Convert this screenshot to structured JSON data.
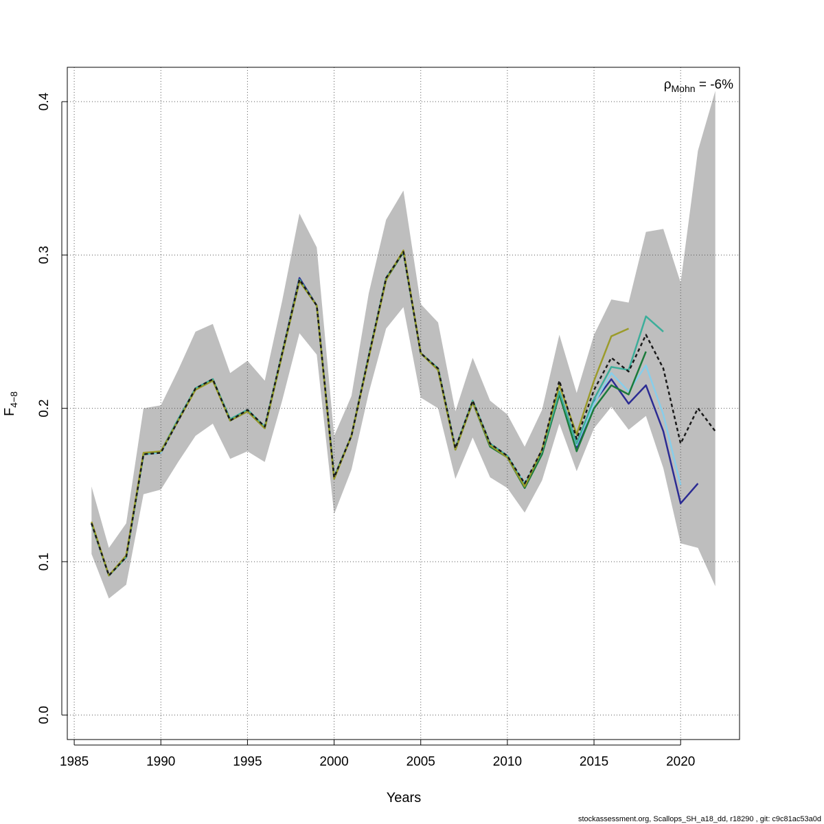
{
  "chart_data": {
    "type": "line",
    "xlabel": "Years",
    "ylabel_main": "F",
    "ylabel_sub": "4−8",
    "xlim": [
      1984.6,
      2023.4
    ],
    "ylim": [
      -0.016,
      0.4224
    ],
    "xticks": [
      "1985",
      "1990",
      "1995",
      "2000",
      "2005",
      "2010",
      "2015",
      "2020"
    ],
    "yticks": [
      "0.0",
      "0.1",
      "0.2",
      "0.3",
      "0.4"
    ],
    "grid": true,
    "annotation": {
      "symbol": "ρ",
      "sub": "Mohn",
      "text": " = -6%"
    },
    "footer": "stockassessment.org, Scallops_SH_a18_dd, r18290 , git: c9c81ac53a0d",
    "band": {
      "color": "#bebebe",
      "x": [
        1986,
        1987,
        1988,
        1989,
        1990,
        1991,
        1992,
        1993,
        1994,
        1995,
        1996,
        1997,
        1998,
        1999,
        2000,
        2001,
        2002,
        2003,
        2004,
        2005,
        2006,
        2007,
        2008,
        2009,
        2010,
        2011,
        2012,
        2013,
        2014,
        2015,
        2016,
        2017,
        2018,
        2019,
        2020,
        2021,
        2022
      ],
      "upper": [
        0.149,
        0.109,
        0.125,
        0.2,
        0.202,
        0.225,
        0.25,
        0.255,
        0.223,
        0.231,
        0.218,
        0.27,
        0.327,
        0.305,
        0.182,
        0.208,
        0.275,
        0.323,
        0.342,
        0.268,
        0.256,
        0.198,
        0.233,
        0.205,
        0.196,
        0.175,
        0.199,
        0.248,
        0.21,
        0.248,
        0.271,
        0.269,
        0.315,
        0.317,
        0.282,
        0.368,
        0.407
      ],
      "lower": [
        0.105,
        0.076,
        0.085,
        0.144,
        0.147,
        0.165,
        0.182,
        0.19,
        0.167,
        0.172,
        0.165,
        0.205,
        0.249,
        0.235,
        0.131,
        0.16,
        0.21,
        0.252,
        0.266,
        0.207,
        0.2,
        0.154,
        0.181,
        0.155,
        0.148,
        0.132,
        0.153,
        0.19,
        0.159,
        0.187,
        0.201,
        0.186,
        0.195,
        0.161,
        0.112,
        0.109,
        0.084
      ]
    },
    "series": [
      {
        "color": "#2b2b93",
        "dashed": false,
        "x": [
          1986,
          1987,
          1988,
          1989,
          1990,
          1991,
          1992,
          1993,
          1994,
          1995,
          1996,
          1997,
          1998,
          1999,
          2000,
          2001,
          2002,
          2003,
          2004,
          2005,
          2006,
          2007,
          2008,
          2009,
          2010,
          2011,
          2012,
          2013,
          2014,
          2015,
          2016,
          2017,
          2018,
          2019,
          2020,
          2021
        ],
        "values": [
          0.125,
          0.091,
          0.103,
          0.17,
          0.171,
          0.192,
          0.213,
          0.219,
          0.192,
          0.199,
          0.188,
          0.236,
          0.285,
          0.267,
          0.155,
          0.182,
          0.234,
          0.285,
          0.302,
          0.236,
          0.226,
          0.174,
          0.205,
          0.177,
          0.169,
          0.15,
          0.171,
          0.21,
          0.174,
          0.204,
          0.219,
          0.203,
          0.215,
          0.185,
          0.138,
          0.151
        ]
      },
      {
        "color": "#87ceeb",
        "dashed": false,
        "x": [
          1986,
          1987,
          1988,
          1989,
          1990,
          1991,
          1992,
          1993,
          1994,
          1995,
          1996,
          1997,
          1998,
          1999,
          2000,
          2001,
          2002,
          2003,
          2004,
          2005,
          2006,
          2007,
          2008,
          2009,
          2010,
          2011,
          2012,
          2013,
          2014,
          2015,
          2016,
          2017,
          2018,
          2019,
          2020
        ],
        "values": [
          0.125,
          0.091,
          0.103,
          0.17,
          0.171,
          0.192,
          0.213,
          0.219,
          0.192,
          0.199,
          0.188,
          0.236,
          0.284,
          0.267,
          0.155,
          0.182,
          0.234,
          0.285,
          0.302,
          0.236,
          0.226,
          0.174,
          0.205,
          0.177,
          0.169,
          0.151,
          0.172,
          0.211,
          0.176,
          0.203,
          0.223,
          0.211,
          0.228,
          0.196,
          0.15
        ]
      },
      {
        "color": "#1b7a3a",
        "dashed": false,
        "x": [
          1986,
          1987,
          1988,
          1989,
          1990,
          1991,
          1992,
          1993,
          1994,
          1995,
          1996,
          1997,
          1998,
          1999,
          2000,
          2001,
          2002,
          2003,
          2004,
          2005,
          2006,
          2007,
          2008,
          2009,
          2010,
          2011,
          2012,
          2013,
          2014,
          2015,
          2016,
          2017,
          2018
        ],
        "values": [
          0.125,
          0.091,
          0.103,
          0.17,
          0.172,
          0.192,
          0.213,
          0.219,
          0.192,
          0.198,
          0.187,
          0.235,
          0.283,
          0.267,
          0.155,
          0.182,
          0.234,
          0.284,
          0.302,
          0.236,
          0.225,
          0.173,
          0.204,
          0.175,
          0.168,
          0.148,
          0.17,
          0.209,
          0.172,
          0.2,
          0.215,
          0.209,
          0.237
        ]
      },
      {
        "color": "#3cae9a",
        "dashed": false,
        "x": [
          1986,
          1987,
          1988,
          1989,
          1990,
          1991,
          1992,
          1993,
          1994,
          1995,
          1996,
          1997,
          1998,
          1999,
          2000,
          2001,
          2002,
          2003,
          2004,
          2005,
          2006,
          2007,
          2008,
          2009,
          2010,
          2011,
          2012,
          2013,
          2014,
          2015,
          2016,
          2017,
          2018,
          2019
        ],
        "values": [
          0.125,
          0.091,
          0.103,
          0.17,
          0.172,
          0.193,
          0.213,
          0.219,
          0.193,
          0.199,
          0.188,
          0.236,
          0.284,
          0.267,
          0.155,
          0.182,
          0.234,
          0.285,
          0.302,
          0.236,
          0.226,
          0.174,
          0.205,
          0.177,
          0.169,
          0.15,
          0.172,
          0.211,
          0.177,
          0.206,
          0.227,
          0.225,
          0.26,
          0.25
        ]
      },
      {
        "color": "#9b9b2a",
        "dashed": false,
        "x": [
          1986,
          1987,
          1988,
          1989,
          1990,
          1991,
          1992,
          1993,
          1994,
          1995,
          1996,
          1997,
          1998,
          1999,
          2000,
          2001,
          2002,
          2003,
          2004,
          2005,
          2006,
          2007,
          2008,
          2009,
          2010,
          2011,
          2012,
          2013,
          2014,
          2015,
          2016,
          2017
        ],
        "values": [
          0.126,
          0.091,
          0.104,
          0.171,
          0.172,
          0.192,
          0.212,
          0.218,
          0.192,
          0.198,
          0.187,
          0.235,
          0.283,
          0.267,
          0.154,
          0.182,
          0.233,
          0.284,
          0.303,
          0.236,
          0.225,
          0.173,
          0.204,
          0.176,
          0.168,
          0.149,
          0.173,
          0.215,
          0.183,
          0.218,
          0.247,
          0.252
        ]
      },
      {
        "color": "#1a1a1a",
        "dashed": true,
        "x": [
          1986,
          1987,
          1988,
          1989,
          1990,
          1991,
          1992,
          1993,
          1994,
          1995,
          1996,
          1997,
          1998,
          1999,
          2000,
          2001,
          2002,
          2003,
          2004,
          2005,
          2006,
          2007,
          2008,
          2009,
          2010,
          2011,
          2012,
          2013,
          2014,
          2015,
          2016,
          2017,
          2018,
          2019,
          2020,
          2021,
          2022
        ],
        "values": [
          0.125,
          0.091,
          0.103,
          0.17,
          0.171,
          0.192,
          0.213,
          0.219,
          0.192,
          0.199,
          0.188,
          0.236,
          0.284,
          0.267,
          0.155,
          0.182,
          0.234,
          0.285,
          0.302,
          0.236,
          0.226,
          0.174,
          0.205,
          0.177,
          0.169,
          0.151,
          0.173,
          0.218,
          0.18,
          0.212,
          0.233,
          0.224,
          0.248,
          0.226,
          0.177,
          0.2,
          0.185
        ]
      }
    ]
  }
}
